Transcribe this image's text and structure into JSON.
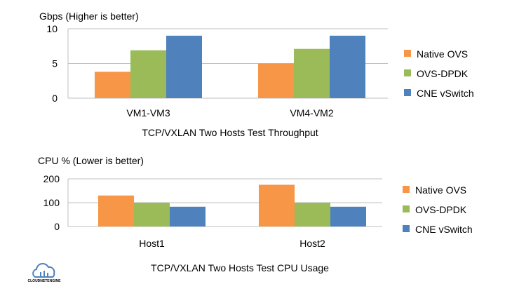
{
  "colors": {
    "native": "#F79646",
    "ovs": "#9BBB59",
    "cne": "#4F81BD",
    "grid": "#BFBFBF"
  },
  "logo": {
    "text": "CLOUDNETENGINE",
    "icon": "cloud-logo-icon"
  },
  "chart_data": [
    {
      "type": "bar",
      "ylabel": "Gbps (Higher is better)",
      "xlabel": "TCP/VXLAN Two Hosts Test Throughput",
      "categories": [
        "VM1-VM3",
        "VM4-VM2"
      ],
      "ylim": [
        0,
        10
      ],
      "yticks": [
        "0",
        "5",
        "10"
      ],
      "grid": true,
      "legend_position": "right",
      "series": [
        {
          "name": "Native OVS",
          "values": [
            3.8,
            5.0
          ]
        },
        {
          "name": "OVS-DPDK",
          "values": [
            6.9,
            7.1
          ]
        },
        {
          "name": "CNE vSwitch",
          "values": [
            9.0,
            9.0
          ]
        }
      ]
    },
    {
      "type": "bar",
      "ylabel": "CPU % (Lower is better)",
      "xlabel": "TCP/VXLAN Two Hosts Test CPU Usage",
      "categories": [
        "Host1",
        "Host2"
      ],
      "ylim": [
        0,
        200
      ],
      "yticks": [
        "0",
        "100",
        "200"
      ],
      "grid": true,
      "legend_position": "right",
      "series": [
        {
          "name": "Native OVS",
          "values": [
            130,
            175
          ]
        },
        {
          "name": "OVS-DPDK",
          "values": [
            100,
            100
          ]
        },
        {
          "name": "CNE vSwitch",
          "values": [
            83,
            83
          ]
        }
      ]
    }
  ]
}
